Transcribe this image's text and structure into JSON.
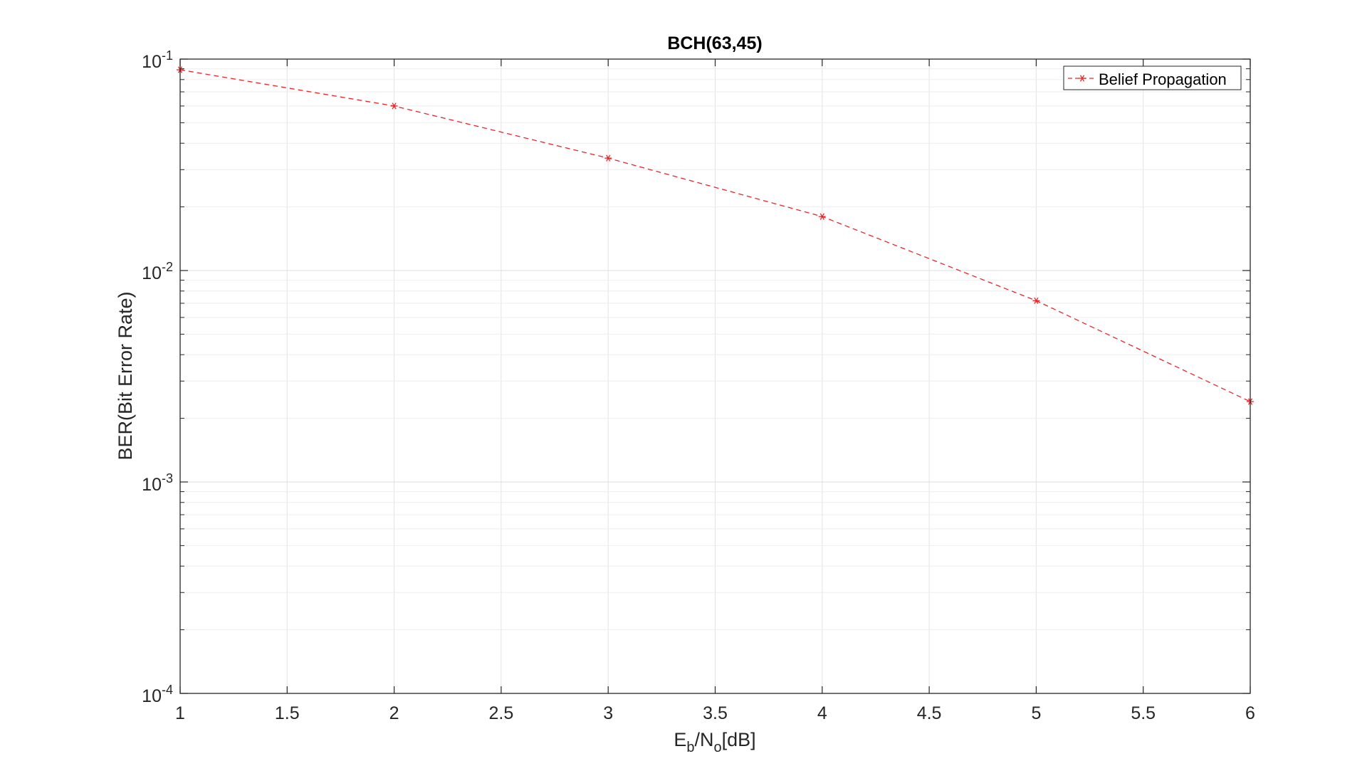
{
  "chart_data": {
    "type": "line",
    "title": "BCH(63,45)",
    "xlabel": {
      "base": "E",
      "sub1": "b",
      "mid": "/N",
      "sub2": "o",
      "tail": "[dB]"
    },
    "ylabel": "BER(Bit Error Rate)",
    "xscale": "linear",
    "yscale": "log",
    "xlim": [
      1,
      6
    ],
    "ylim": [
      0.0001,
      0.1
    ],
    "grid": true,
    "legend_position": "top-right",
    "x_ticks": [
      1,
      1.5,
      2,
      2.5,
      3,
      3.5,
      4,
      4.5,
      5,
      5.5,
      6
    ],
    "x_tick_labels": [
      "1",
      "1.5",
      "2",
      "2.5",
      "3",
      "3.5",
      "4",
      "4.5",
      "5",
      "5.5",
      "6"
    ],
    "y_ticks": [
      {
        "value": 0.1,
        "base": "10",
        "exp": "-1"
      },
      {
        "value": 0.01,
        "base": "10",
        "exp": "-2"
      },
      {
        "value": 0.001,
        "base": "10",
        "exp": "-3"
      },
      {
        "value": 0.0001,
        "base": "10",
        "exp": "-4"
      }
    ],
    "series": [
      {
        "name": "Belief Propagation",
        "color": "#e8262a",
        "line_style": "dashed",
        "marker": "asterisk",
        "x": [
          1,
          2,
          3,
          4,
          5,
          6
        ],
        "y": [
          0.089,
          0.06,
          0.034,
          0.018,
          0.0072,
          0.0024
        ]
      }
    ]
  }
}
